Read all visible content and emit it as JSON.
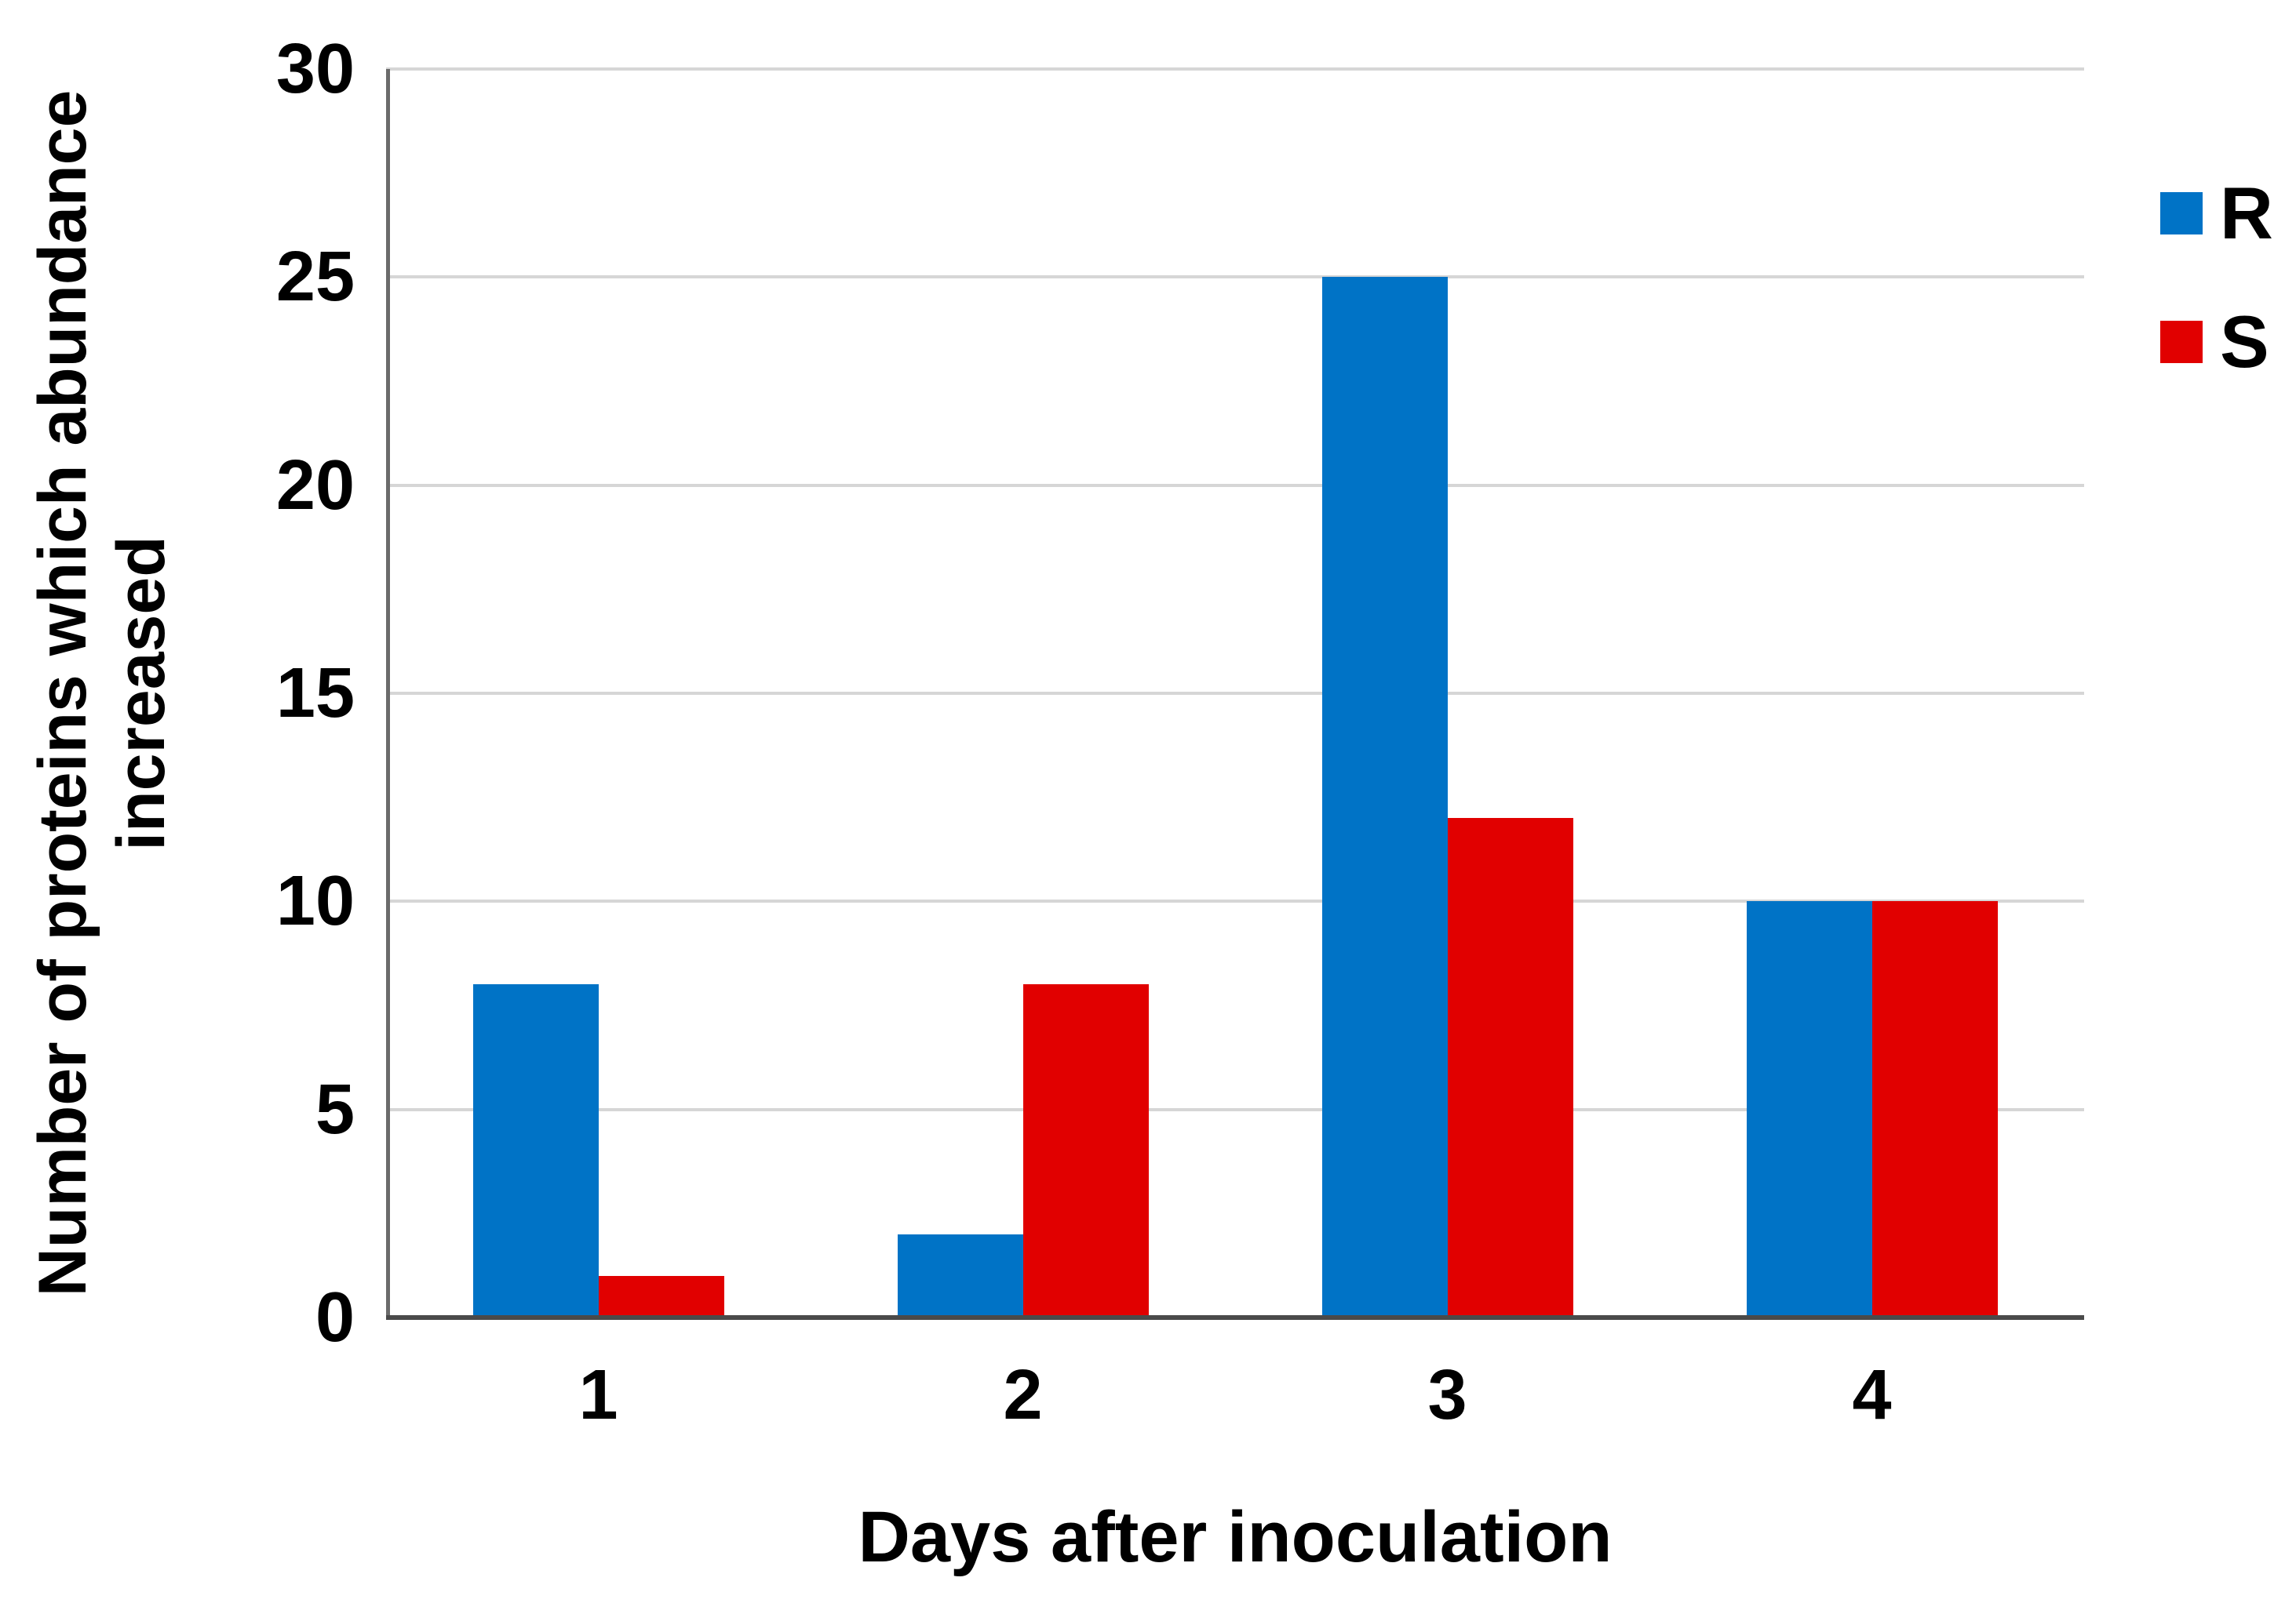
{
  "chart_data": {
    "type": "bar",
    "xlabel": "Days after inoculation",
    "ylabel": "Number of proteins which abundance increased",
    "ylabel_lines": [
      "Number of proteins which abundance",
      "increased"
    ],
    "categories": [
      "1",
      "2",
      "3",
      "4"
    ],
    "series": [
      {
        "name": "R",
        "color": "#0073c6",
        "values": [
          8,
          2,
          25,
          10
        ]
      },
      {
        "name": "S",
        "color": "#e10000",
        "values": [
          1,
          8,
          12,
          10
        ]
      }
    ],
    "ylim": [
      0,
      30
    ],
    "yticks": [
      0,
      5,
      10,
      15,
      20,
      25,
      30
    ],
    "grid": "horizontal",
    "legend_position": "right"
  },
  "colors": {
    "gridline": "#d6d6d6",
    "y_axis_line": "#6b6b6b",
    "x_axis_line": "#4a4a4a",
    "bar_blue": "#0073c6",
    "bar_red": "#e10000",
    "text": "#000000"
  }
}
